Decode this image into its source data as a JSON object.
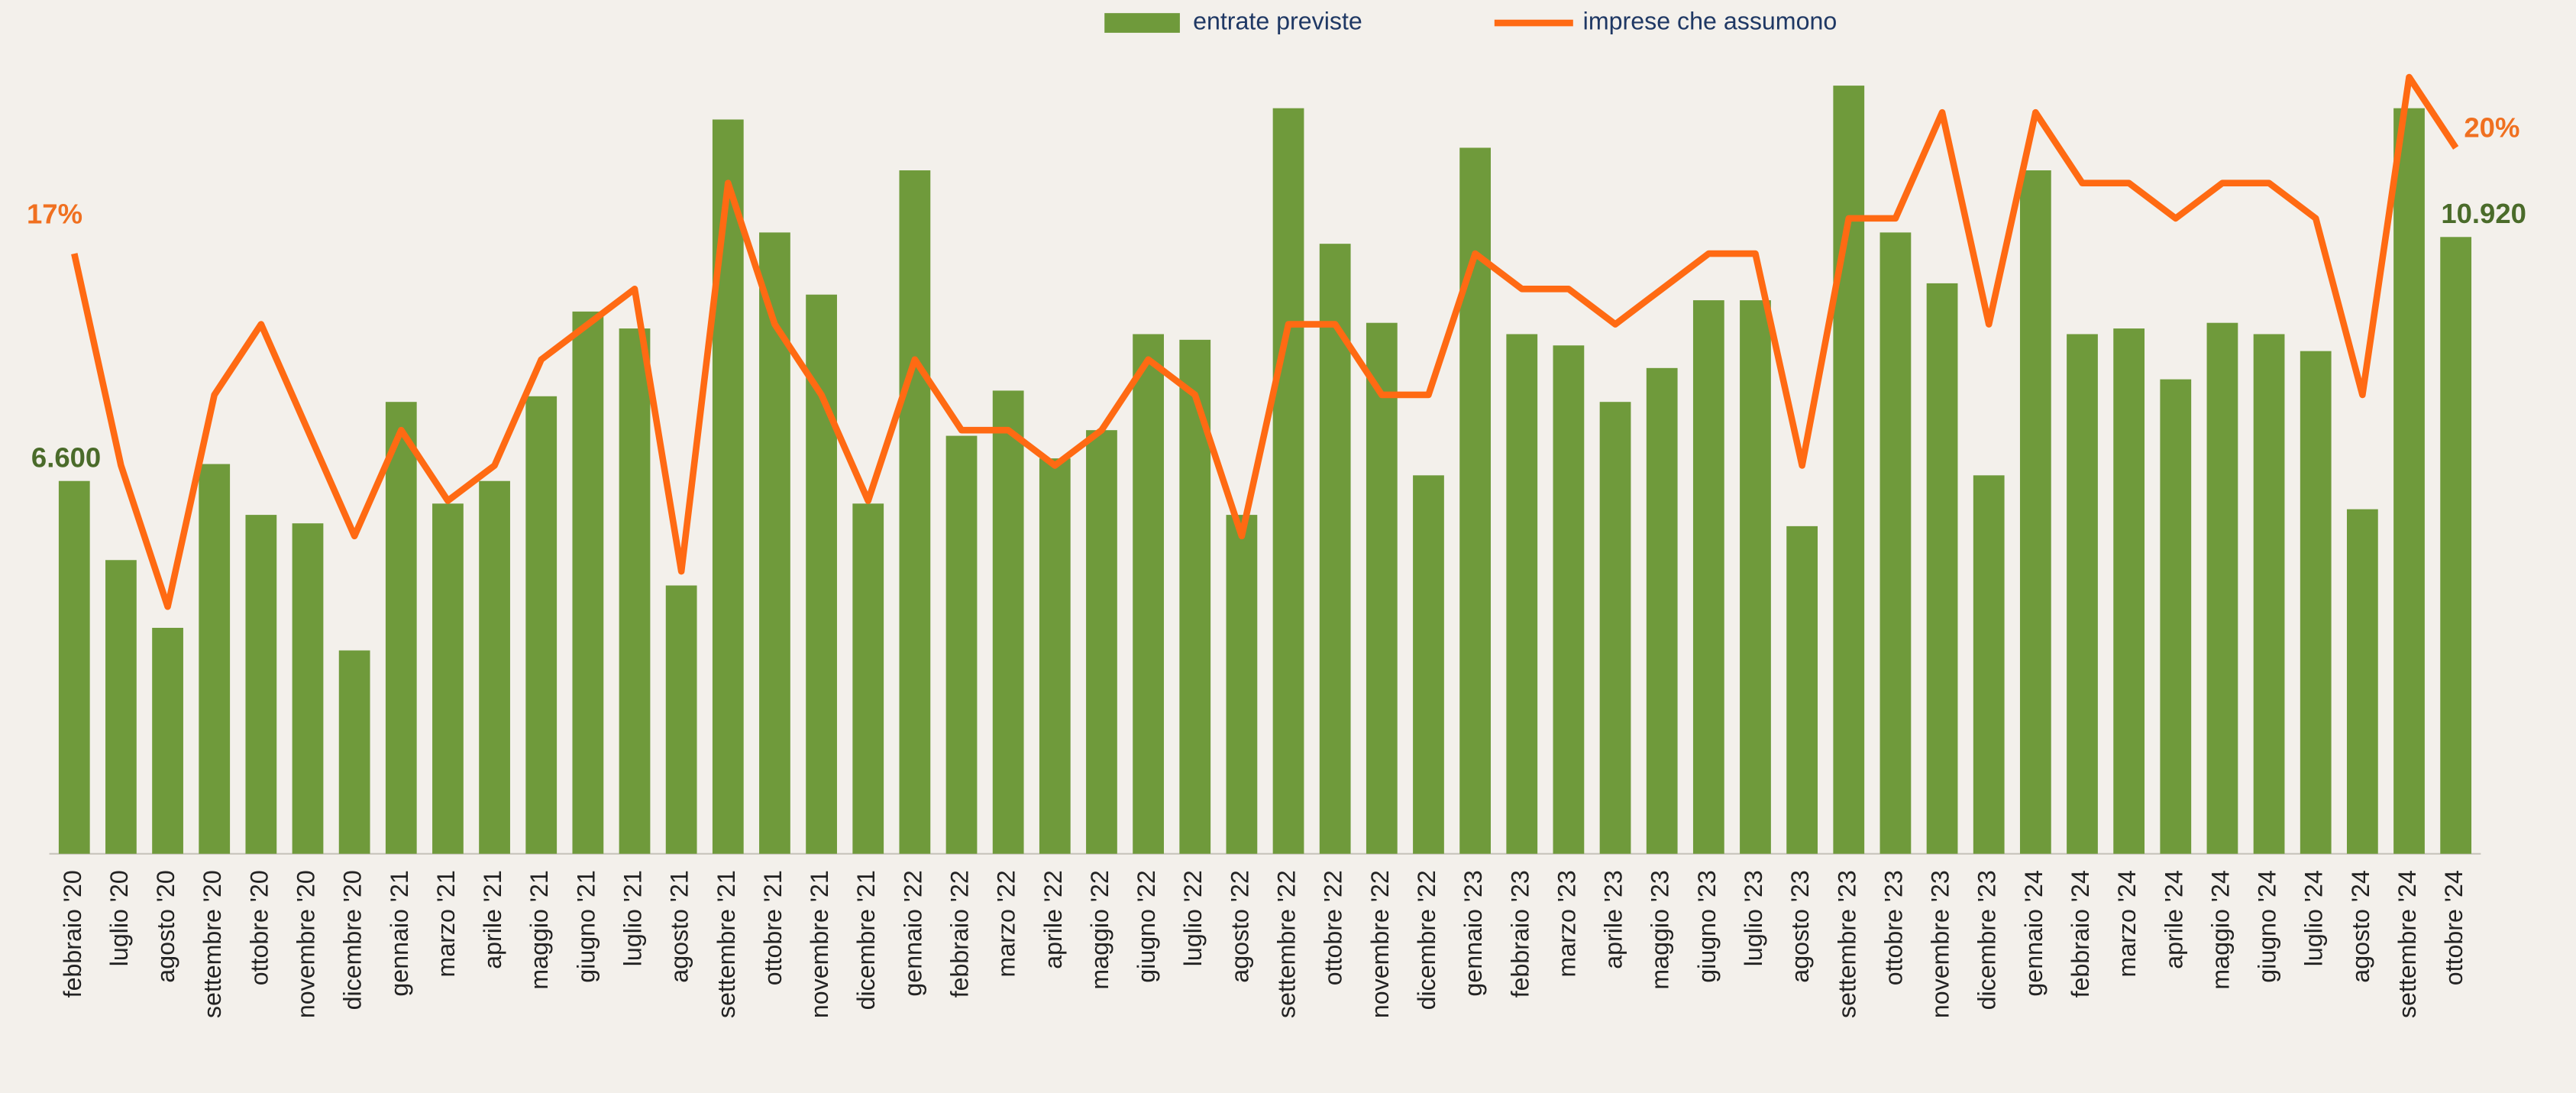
{
  "chart_data": {
    "type": "bar",
    "categories": [
      "febbraio '20",
      "luglio '20",
      "agosto '20",
      "settembre '20",
      "ottobre '20",
      "novembre '20",
      "dicembre '20",
      "gennaio '21",
      "marzo '21",
      "aprile '21",
      "maggio '21",
      "giugno '21",
      "luglio '21",
      "agosto '21",
      "settembre '21",
      "ottobre '21",
      "novembre '21",
      "dicembre '21",
      "gennaio '22",
      "febbraio '22",
      "marzo '22",
      "aprile '22",
      "maggio '22",
      "giugno '22",
      "luglio '22",
      "agosto '22",
      "settembre '22",
      "ottobre '22",
      "novembre '22",
      "dicembre '22",
      "gennaio '23",
      "febbraio '23",
      "marzo '23",
      "aprile '23",
      "maggio '23",
      "giugno '23",
      "luglio '23",
      "agosto '23",
      "settembre '23",
      "ottobre '23",
      "novembre '23",
      "dicembre '23",
      "gennaio '24",
      "febbraio '24",
      "marzo '24",
      "aprile '24",
      "maggio '24",
      "giugno '24",
      "luglio '24",
      "agosto '24",
      "settembre '24",
      "ottobre '24"
    ],
    "series": [
      {
        "name": "entrate previste",
        "type": "bar",
        "color": "#6f9a3b",
        "label_color": "#4a6b2a",
        "values": [
          6600,
          5200,
          4000,
          6900,
          6000,
          5850,
          3600,
          8000,
          6200,
          6600,
          8100,
          9600,
          9300,
          4750,
          13000,
          11000,
          9900,
          6200,
          12100,
          7400,
          8200,
          7000,
          7500,
          9200,
          9100,
          6000,
          13200,
          10800,
          9400,
          6700,
          12500,
          9200,
          9000,
          8000,
          8600,
          9800,
          9800,
          5800,
          13600,
          11000,
          10100,
          6700,
          12100,
          9200,
          9300,
          8400,
          9400,
          9200,
          8900,
          6100,
          13200,
          10920
        ],
        "value_labels": [
          "6.600",
          null,
          null,
          null,
          null,
          null,
          null,
          null,
          null,
          null,
          null,
          null,
          null,
          null,
          null,
          null,
          null,
          null,
          null,
          null,
          null,
          null,
          null,
          null,
          null,
          null,
          null,
          null,
          null,
          null,
          null,
          null,
          null,
          null,
          null,
          null,
          null,
          null,
          null,
          null,
          null,
          null,
          null,
          null,
          null,
          null,
          null,
          null,
          null,
          null,
          null,
          "10.920"
        ]
      },
      {
        "name": "imprese che assumono",
        "type": "line",
        "axis": "y2",
        "color": "#ff6a13",
        "label_color": "#f07020",
        "values": [
          17,
          11,
          7,
          13,
          15,
          12,
          9,
          12,
          10,
          11,
          14,
          15,
          16,
          8,
          19,
          15,
          13,
          10,
          14,
          12,
          12,
          11,
          12,
          14,
          13,
          9,
          15,
          15,
          13,
          13,
          17,
          16,
          16,
          15,
          16,
          17,
          17,
          11,
          18,
          18,
          21,
          15,
          21,
          19,
          19,
          18,
          19,
          19,
          18,
          13,
          22,
          20
        ],
        "value_labels": [
          "17%",
          null,
          null,
          null,
          null,
          null,
          null,
          null,
          null,
          null,
          null,
          null,
          null,
          null,
          null,
          null,
          null,
          null,
          null,
          null,
          null,
          null,
          null,
          null,
          null,
          null,
          null,
          null,
          null,
          null,
          null,
          null,
          null,
          null,
          null,
          null,
          null,
          null,
          null,
          null,
          null,
          null,
          null,
          null,
          null,
          null,
          null,
          null,
          null,
          null,
          null,
          "20%"
        ]
      }
    ],
    "ylim": [
      0,
      15000
    ],
    "y2lim": [
      0,
      24
    ],
    "legend": "top",
    "grid": false
  }
}
